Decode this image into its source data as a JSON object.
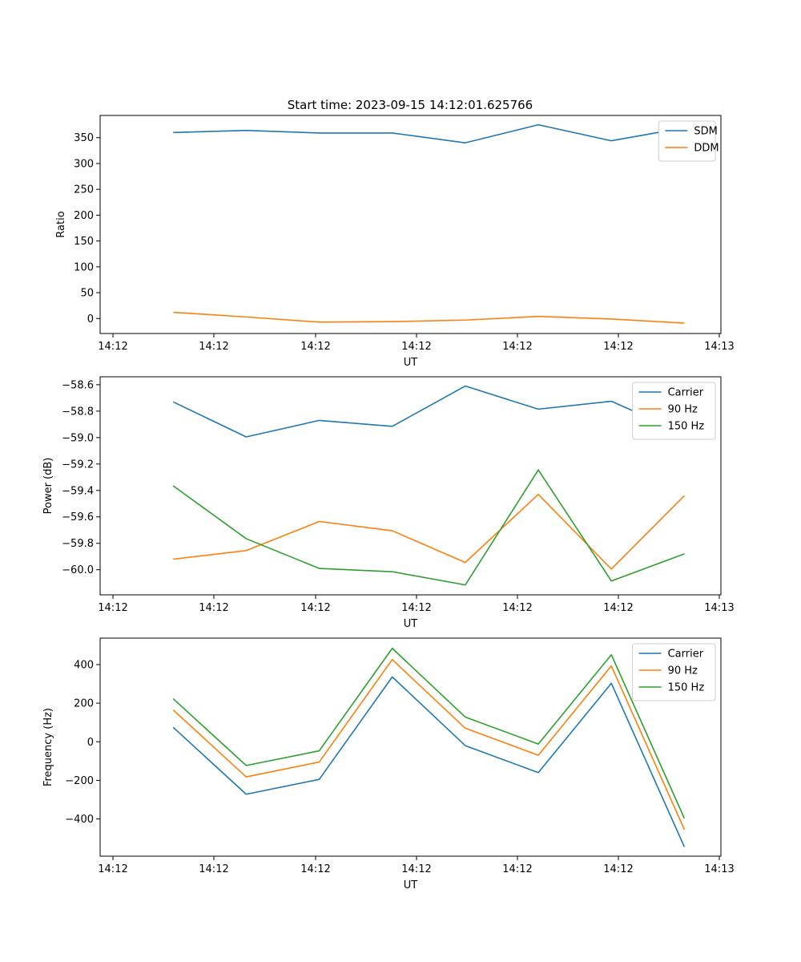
{
  "title": "Start time: 2023-09-15 14:12:01.625766",
  "colors": {
    "blue": "#1f77b4",
    "orange": "#ff7f0e",
    "green": "#2ca02c"
  },
  "chart_data": [
    {
      "type": "line",
      "xlabel": "UT",
      "ylabel": "Ratio",
      "x_tick_labels": [
        "14:12",
        "14:12",
        "14:12",
        "14:12",
        "14:12",
        "14:12",
        "14:13"
      ],
      "y_ticks": [
        0,
        50,
        100,
        150,
        200,
        250,
        300,
        350
      ],
      "y_tick_labels": [
        "0",
        "50",
        "100",
        "150",
        "200",
        "250",
        "300",
        "350"
      ],
      "ylim": [
        -29,
        393
      ],
      "x": [
        1,
        2,
        3,
        4,
        5,
        6,
        7,
        8
      ],
      "xlim": [
        0.0,
        8.5
      ],
      "legend_position": "upper-right",
      "series": [
        {
          "name": "SDM",
          "color": "#1f77b4",
          "values": [
            360,
            364,
            359,
            359,
            340,
            375,
            344,
            369
          ]
        },
        {
          "name": "DDM",
          "color": "#ff7f0e",
          "values": [
            12,
            3,
            -7,
            -6,
            -3,
            4,
            -1,
            -9
          ]
        }
      ]
    },
    {
      "type": "line",
      "xlabel": "UT",
      "ylabel": "Power (dB)",
      "x_tick_labels": [
        "14:12",
        "14:12",
        "14:12",
        "14:12",
        "14:12",
        "14:12",
        "14:13"
      ],
      "y_ticks": [
        -60.0,
        -59.8,
        -59.6,
        -59.4,
        -59.2,
        -59.0,
        -58.8,
        -58.6
      ],
      "y_tick_labels": [
        "−60.0",
        "−59.8",
        "−59.6",
        "−59.4",
        "−59.2",
        "−59.0",
        "−58.8",
        "−58.6"
      ],
      "ylim": [
        -60.19,
        -58.54
      ],
      "x": [
        1,
        2,
        3,
        4,
        5,
        6,
        7,
        8
      ],
      "xlim": [
        0.0,
        8.5
      ],
      "legend_position": "upper-right",
      "series": [
        {
          "name": "Carrier",
          "color": "#1f77b4",
          "values": [
            -58.73,
            -58.995,
            -58.87,
            -58.915,
            -58.61,
            -58.785,
            -58.725,
            -58.97
          ]
        },
        {
          "name": "90 Hz",
          "color": "#ff7f0e",
          "values": [
            -59.92,
            -59.855,
            -59.635,
            -59.705,
            -59.945,
            -59.43,
            -59.995,
            -59.44
          ]
        },
        {
          "name": "150 Hz",
          "color": "#2ca02c",
          "values": [
            -59.365,
            -59.765,
            -59.99,
            -60.015,
            -60.115,
            -59.245,
            -60.085,
            -59.88
          ]
        }
      ]
    },
    {
      "type": "line",
      "xlabel": "UT",
      "ylabel": "Frequency (Hz)",
      "x_tick_labels": [
        "14:12",
        "14:12",
        "14:12",
        "14:12",
        "14:12",
        "14:12",
        "14:13"
      ],
      "y_ticks": [
        -400,
        -200,
        0,
        200,
        400
      ],
      "y_tick_labels": [
        "−400",
        "−200",
        "0",
        "200",
        "400"
      ],
      "ylim": [
        -593,
        537
      ],
      "x": [
        1,
        2,
        3,
        4,
        5,
        6,
        7,
        8
      ],
      "xlim": [
        0.0,
        8.5
      ],
      "legend_position": "upper-right",
      "series": [
        {
          "name": "Carrier",
          "color": "#1f77b4",
          "values": [
            75,
            -272,
            -195,
            336,
            -20,
            -160,
            303,
            -545
          ]
        },
        {
          "name": "90 Hz",
          "color": "#ff7f0e",
          "values": [
            165,
            -182,
            -105,
            426,
            70,
            -70,
            393,
            -455
          ]
        },
        {
          "name": "150 Hz",
          "color": "#2ca02c",
          "values": [
            223,
            -123,
            -47,
            484,
            128,
            -12,
            451,
            -397
          ]
        }
      ]
    }
  ]
}
